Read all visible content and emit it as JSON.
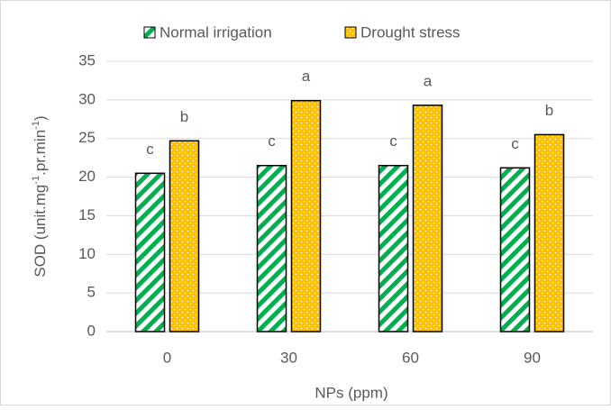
{
  "chart_data": {
    "type": "bar",
    "categories": [
      "0",
      "30",
      "60",
      "90"
    ],
    "series": [
      {
        "name": "Normal irrigation",
        "color": "#00b050",
        "pattern": "stripes",
        "values": [
          20.5,
          21.5,
          21.5,
          21.2
        ],
        "labels": [
          "c",
          "c",
          "c",
          "c"
        ]
      },
      {
        "name": "Drought stress",
        "color": "#ffc000",
        "pattern": "dots",
        "values": [
          24.7,
          29.9,
          29.3,
          25.5
        ],
        "labels": [
          "b",
          "a",
          "a",
          "b"
        ]
      }
    ],
    "ylabel": [
      "SOD (unit.mg",
      "-1",
      ".pr.min",
      "-1",
      ")"
    ],
    "xlabel": "NPs (ppm)",
    "ylim": [
      0,
      35
    ],
    "yticks": [
      0,
      5,
      10,
      15,
      20,
      25,
      30,
      35
    ],
    "grid": true,
    "legend": "top"
  }
}
